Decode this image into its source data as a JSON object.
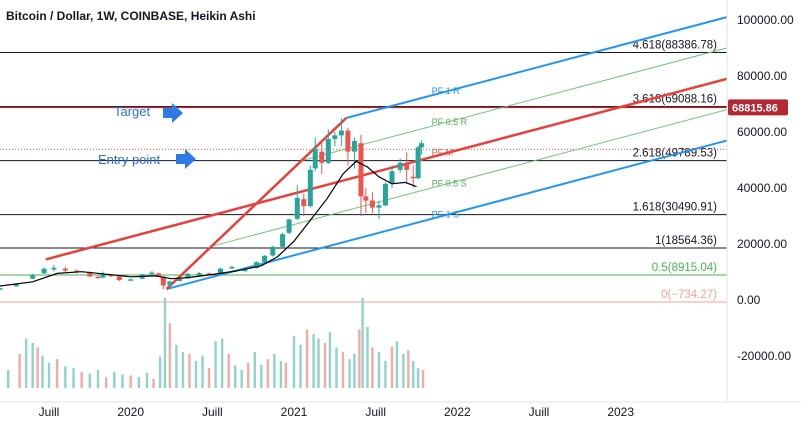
{
  "chart_data": {
    "type": "candlestick",
    "title": "Bitcoin / Dollar, 1W, COINBASE, Heikin Ashi",
    "y_ticks": [
      "100000.00",
      "80000.00",
      "60000.00",
      "40000.00",
      "20000.00",
      "0.00",
      "-20000.00"
    ],
    "y_tick_values": [
      100000,
      80000,
      60000,
      40000,
      20000,
      0,
      -20000
    ],
    "x_ticks": [
      "Juill",
      "2020",
      "Juill",
      "2021",
      "Juill",
      "2022",
      "Juill",
      "2023"
    ],
    "x_tick_values": [
      2019.5,
      2020.0,
      2020.5,
      2021.0,
      2021.5,
      2022.0,
      2022.5,
      2023.0
    ],
    "ylim": [
      -35000,
      106000
    ],
    "xlim": [
      2019.2,
      2023.7
    ],
    "last_price": "68815.86",
    "last_price_value": 68815.86,
    "colors": {
      "up": "#26a69a",
      "down": "#ef5350",
      "ma": "#000000",
      "channel": "#2196f3",
      "median": "#e8403a",
      "half_channel": "#76c27a",
      "last_price": "#b22833"
    },
    "fib_levels": [
      {
        "label": "4.618(88386.78)",
        "value": 88386.78,
        "color": "#131722"
      },
      {
        "label": "3.618(69088.16)",
        "value": 69088.16,
        "color": "#131722"
      },
      {
        "label": "2.618(49789.53)",
        "value": 49789.53,
        "color": "#131722"
      },
      {
        "label": "1.618(30490.91)",
        "value": 30490.91,
        "color": "#131722"
      },
      {
        "label": "1(18564.36)",
        "value": 18564.36,
        "color": "#131722"
      },
      {
        "label": "0.5(8915.04)",
        "value": 8915.04,
        "color": "#4caf50"
      },
      {
        "label": "0(−734.27)",
        "value": -734.27,
        "color": "#f4a09b"
      }
    ],
    "pitchfork_labels": [
      {
        "label": "PF 1 R",
        "color": "#2196f3"
      },
      {
        "label": "PF 0.5 R",
        "color": "#4caf50"
      },
      {
        "label": "PF M",
        "color": "#ef5350"
      },
      {
        "label": "PF 0.5 S",
        "color": "#4caf50"
      },
      {
        "label": "PF 1 S",
        "color": "#2196f3"
      }
    ],
    "annotations": {
      "target": "Target",
      "entry": "Entry point"
    },
    "ohlc": [
      [
        2019.2,
        4000,
        4300,
        3900,
        4200
      ],
      [
        2019.3,
        4900,
        5800,
        4800,
        5600
      ],
      [
        2019.4,
        7600,
        9300,
        7400,
        8900
      ],
      [
        2019.47,
        9500,
        11600,
        9300,
        11200
      ],
      [
        2019.53,
        10900,
        12600,
        10200,
        11500
      ],
      [
        2019.6,
        11200,
        11900,
        10000,
        10500
      ],
      [
        2019.67,
        10500,
        10900,
        9600,
        10000
      ],
      [
        2019.75,
        9900,
        10200,
        8200,
        8400
      ],
      [
        2019.8,
        8300,
        8700,
        7700,
        7900
      ],
      [
        2019.83,
        8000,
        10200,
        7800,
        9200
      ],
      [
        2019.88,
        9000,
        9300,
        8200,
        8500
      ],
      [
        2019.93,
        8400,
        8600,
        6700,
        7100
      ],
      [
        2020.0,
        7200,
        7600,
        7000,
        7400
      ],
      [
        2020.07,
        7600,
        9300,
        7500,
        9200
      ],
      [
        2020.13,
        9300,
        10300,
        9000,
        9800
      ],
      [
        2020.17,
        9500,
        9800,
        8400,
        8600
      ],
      [
        2020.2,
        8400,
        8500,
        3900,
        5200
      ],
      [
        2020.24,
        5300,
        6900,
        5000,
        6600
      ],
      [
        2020.3,
        6800,
        7700,
        6600,
        7500
      ],
      [
        2020.35,
        7700,
        9700,
        7600,
        9400
      ],
      [
        2020.42,
        9300,
        10000,
        8600,
        9600
      ],
      [
        2020.48,
        9500,
        9800,
        9000,
        9200
      ],
      [
        2020.55,
        9300,
        11500,
        9100,
        11200
      ],
      [
        2020.62,
        11400,
        12300,
        11100,
        11800
      ],
      [
        2020.7,
        10700,
        11000,
        10200,
        10800
      ],
      [
        2020.77,
        11400,
        13800,
        11200,
        13500
      ],
      [
        2020.82,
        13600,
        16000,
        13400,
        15800
      ],
      [
        2020.87,
        15900,
        19400,
        15500,
        19000
      ],
      [
        2020.93,
        19000,
        24000,
        18500,
        23500
      ],
      [
        2020.97,
        24000,
        29000,
        23500,
        28800
      ],
      [
        2021.02,
        29000,
        41000,
        28500,
        36500
      ],
      [
        2021.06,
        36000,
        38000,
        30000,
        33500
      ],
      [
        2021.1,
        33500,
        48000,
        33000,
        46500
      ],
      [
        2021.13,
        47000,
        58000,
        46000,
        54000
      ],
      [
        2021.17,
        53000,
        56000,
        45000,
        49000
      ],
      [
        2021.21,
        49000,
        61000,
        48500,
        57500
      ],
      [
        2021.25,
        57500,
        60000,
        55000,
        58800
      ],
      [
        2021.29,
        58800,
        64900,
        55000,
        60500
      ],
      [
        2021.33,
        60500,
        61500,
        48000,
        53000
      ],
      [
        2021.37,
        53000,
        58000,
        47000,
        56800
      ],
      [
        2021.41,
        56000,
        59000,
        30000,
        37000
      ],
      [
        2021.44,
        37000,
        40000,
        31000,
        35500
      ],
      [
        2021.48,
        35500,
        38500,
        31000,
        33000
      ],
      [
        2021.52,
        33000,
        35500,
        29000,
        33800
      ],
      [
        2021.56,
        33800,
        42000,
        33500,
        41500
      ],
      [
        2021.6,
        41500,
        48000,
        40000,
        46000
      ],
      [
        2021.65,
        46500,
        50500,
        45500,
        49000
      ],
      [
        2021.69,
        48500,
        52800,
        42000,
        46500
      ],
      [
        2021.73,
        44000,
        48000,
        40000,
        43500
      ],
      [
        2021.76,
        43500,
        55000,
        43000,
        54500
      ],
      [
        2021.78,
        54500,
        57000,
        52000,
        56000
      ]
    ],
    "ma": [
      [
        2019.2,
        5000
      ],
      [
        2019.4,
        6500
      ],
      [
        2019.55,
        9500
      ],
      [
        2019.7,
        10100
      ],
      [
        2019.85,
        9200
      ],
      [
        2020.0,
        8300
      ],
      [
        2020.15,
        8600
      ],
      [
        2020.25,
        7600
      ],
      [
        2020.35,
        8000
      ],
      [
        2020.5,
        9100
      ],
      [
        2020.65,
        10400
      ],
      [
        2020.8,
        12200
      ],
      [
        2020.9,
        15500
      ],
      [
        2021.0,
        21000
      ],
      [
        2021.1,
        28500
      ],
      [
        2021.2,
        36000
      ],
      [
        2021.3,
        45000
      ],
      [
        2021.38,
        49500
      ],
      [
        2021.45,
        47500
      ],
      [
        2021.52,
        44000
      ],
      [
        2021.6,
        41500
      ],
      [
        2021.68,
        42000
      ],
      [
        2021.75,
        40500
      ]
    ],
    "volume": [
      [
        2019.25,
        0.2
      ],
      [
        2019.32,
        0.38
      ],
      [
        2019.36,
        0.55
      ],
      [
        2019.4,
        0.5
      ],
      [
        2019.43,
        0.45
      ],
      [
        2019.46,
        0.36
      ],
      [
        2019.5,
        0.28
      ],
      [
        2019.55,
        0.32
      ],
      [
        2019.6,
        0.24
      ],
      [
        2019.65,
        0.22
      ],
      [
        2019.7,
        0.18
      ],
      [
        2019.75,
        0.16
      ],
      [
        2019.8,
        0.2
      ],
      [
        2019.85,
        0.12
      ],
      [
        2019.9,
        0.18
      ],
      [
        2019.95,
        0.15
      ],
      [
        2020.0,
        0.14
      ],
      [
        2020.05,
        0.12
      ],
      [
        2020.1,
        0.17
      ],
      [
        2020.14,
        0.1
      ],
      [
        2020.18,
        0.35
      ],
      [
        2020.21,
        1.0
      ],
      [
        2020.24,
        0.72
      ],
      [
        2020.28,
        0.48
      ],
      [
        2020.32,
        0.4
      ],
      [
        2020.36,
        0.38
      ],
      [
        2020.4,
        0.3
      ],
      [
        2020.44,
        0.36
      ],
      [
        2020.48,
        0.22
      ],
      [
        2020.52,
        0.52
      ],
      [
        2020.56,
        0.55
      ],
      [
        2020.6,
        0.38
      ],
      [
        2020.64,
        0.25
      ],
      [
        2020.68,
        0.2
      ],
      [
        2020.72,
        0.28
      ],
      [
        2020.76,
        0.4
      ],
      [
        2020.8,
        0.26
      ],
      [
        2020.84,
        0.32
      ],
      [
        2020.88,
        0.38
      ],
      [
        2020.92,
        0.3
      ],
      [
        2020.95,
        0.28
      ],
      [
        2021.0,
        0.58
      ],
      [
        2021.04,
        0.48
      ],
      [
        2021.08,
        0.65
      ],
      [
        2021.12,
        0.6
      ],
      [
        2021.15,
        0.55
      ],
      [
        2021.19,
        0.5
      ],
      [
        2021.22,
        0.62
      ],
      [
        2021.26,
        0.45
      ],
      [
        2021.3,
        0.4
      ],
      [
        2021.34,
        0.32
      ],
      [
        2021.37,
        0.38
      ],
      [
        2021.4,
        0.65
      ],
      [
        2021.42,
        1.0
      ],
      [
        2021.45,
        0.68
      ],
      [
        2021.48,
        0.45
      ],
      [
        2021.52,
        0.4
      ],
      [
        2021.56,
        0.3
      ],
      [
        2021.6,
        0.46
      ],
      [
        2021.63,
        0.52
      ],
      [
        2021.67,
        0.38
      ],
      [
        2021.7,
        0.42
      ],
      [
        2021.73,
        0.3
      ],
      [
        2021.76,
        0.22
      ],
      [
        2021.79,
        0.2
      ]
    ]
  }
}
